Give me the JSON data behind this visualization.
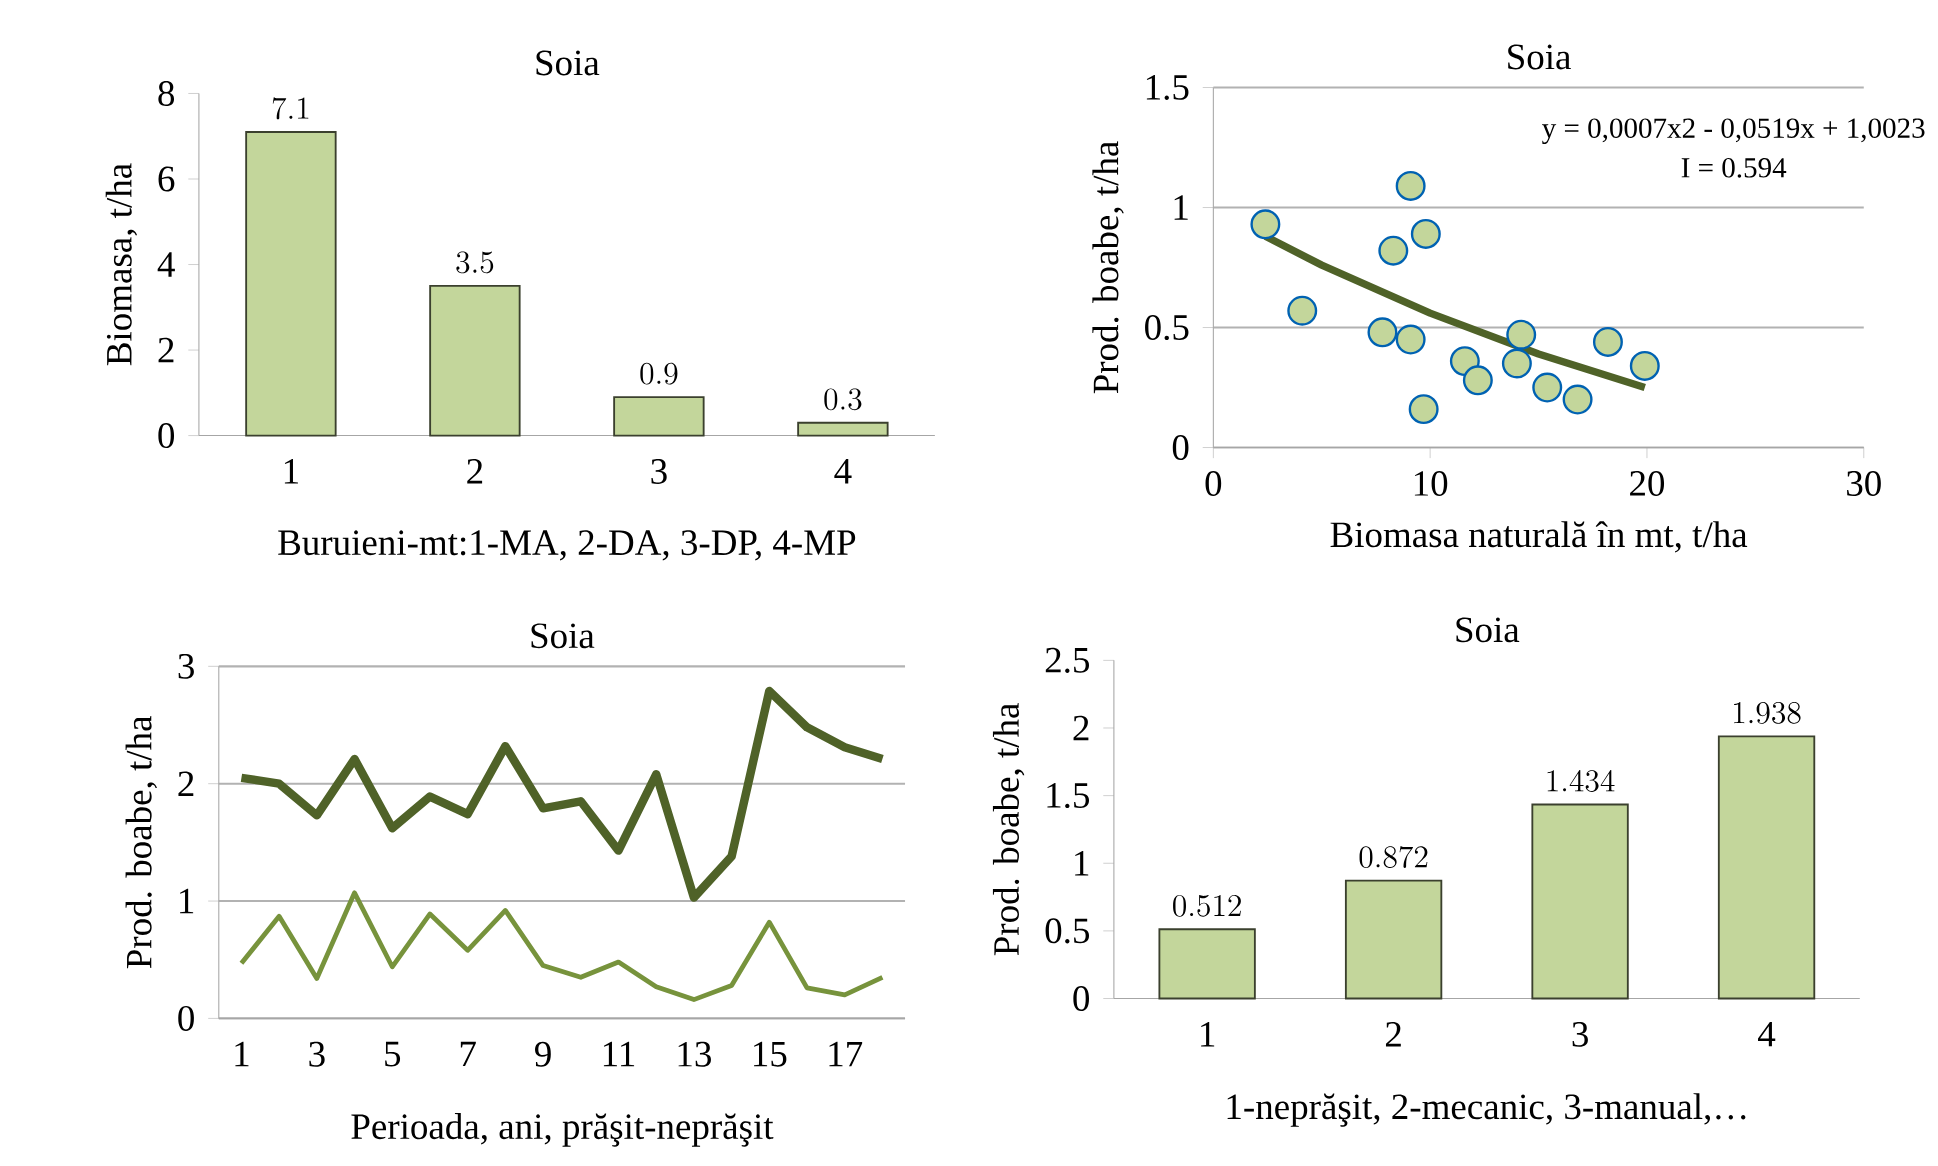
{
  "chart_data": [
    {
      "type": "bar",
      "title": "Soia",
      "xlabel": "Buruieni-mt:1-MA, 2-DA, 3-DP, 4-MP",
      "ylabel": "Biomasa, t/ha",
      "categories": [
        "1",
        "2",
        "3",
        "4"
      ],
      "values": [
        7.1,
        3.5,
        0.9,
        0.3
      ],
      "color": "#c3d69b",
      "ylim": [
        0,
        8
      ],
      "yticks": [
        0,
        2,
        4,
        6,
        8
      ],
      "data_labels": true
    },
    {
      "type": "scatter",
      "title": "Soia",
      "xlabel": "Biomasa naturală în mt, t/ha",
      "ylabel": "Prod. boabe, t/ha",
      "xlim": [
        0,
        30
      ],
      "xticks": [
        0,
        10,
        20,
        30
      ],
      "ylim": [
        0,
        1.5
      ],
      "yticks": [
        0,
        0.5,
        1,
        1.5
      ],
      "grid": "y",
      "annotations": [
        "y = 0,0007x2 - 0,0519x + 1,0023",
        "I = 0.594"
      ],
      "series": [
        {
          "type": "scatter",
          "marker": "circle",
          "color": "#c3d69b",
          "x": [
            2.4,
            4.1,
            7.8,
            8.3,
            9.1,
            9.1,
            9.5,
            9.8,
            9.7,
            11.6,
            12.2,
            14.0,
            14.2,
            15.4,
            16.8,
            18.2,
            19.9
          ],
          "values": [
            0.93,
            0.57,
            0.48,
            0.82,
            1.09,
            0.45,
            null,
            0.89,
            0.16,
            0.36,
            0.28,
            0.35,
            0.47,
            0.25,
            0.2,
            0.44,
            0.34
          ]
        },
        {
          "type": "line",
          "marker": "none",
          "color": "#4f6228",
          "x": [
            2.4,
            5,
            10,
            15,
            19.9
          ],
          "values": [
            0.88,
            0.76,
            0.56,
            0.39,
            0.25
          ]
        }
      ]
    },
    {
      "type": "line",
      "title": "Soia",
      "xlabel": "Perioada, ani, prăşit-neprăşit",
      "ylabel": "Prod. boabe, t/ha",
      "categories": [
        "1",
        null,
        "3",
        null,
        "5",
        null,
        "7",
        null,
        "9",
        null,
        "11",
        null,
        "13",
        null,
        "15",
        null,
        "17",
        null
      ],
      "ylim": [
        0,
        3
      ],
      "yticks": [
        0,
        1,
        2,
        3
      ],
      "grid": "y",
      "series": [
        {
          "color": "#4f6228",
          "values": [
            2.05,
            2.0,
            1.73,
            2.21,
            1.62,
            1.89,
            1.74,
            2.32,
            1.79,
            1.85,
            1.43,
            2.08,
            1.03,
            1.38,
            2.79,
            2.48,
            2.31,
            2.21
          ]
        },
        {
          "color": "#77933c",
          "values": [
            0.47,
            0.87,
            0.34,
            1.07,
            0.44,
            0.89,
            0.58,
            0.92,
            0.45,
            0.35,
            0.48,
            0.27,
            0.16,
            0.28,
            0.82,
            0.26,
            0.2,
            0.35
          ]
        }
      ]
    },
    {
      "type": "bar",
      "title": "Soia",
      "xlabel": "1-neprăşit, 2-mecanic, 3-manual,…",
      "ylabel": "Prod. boabe, t/ha",
      "categories": [
        "1",
        "2",
        "3",
        "4"
      ],
      "values": [
        0.512,
        0.872,
        1.434,
        1.938
      ],
      "color": "#c3d69b",
      "ylim": [
        0,
        2.5
      ],
      "yticks": [
        0,
        0.5,
        1,
        1.5,
        2,
        2.5
      ],
      "data_labels": true
    }
  ]
}
